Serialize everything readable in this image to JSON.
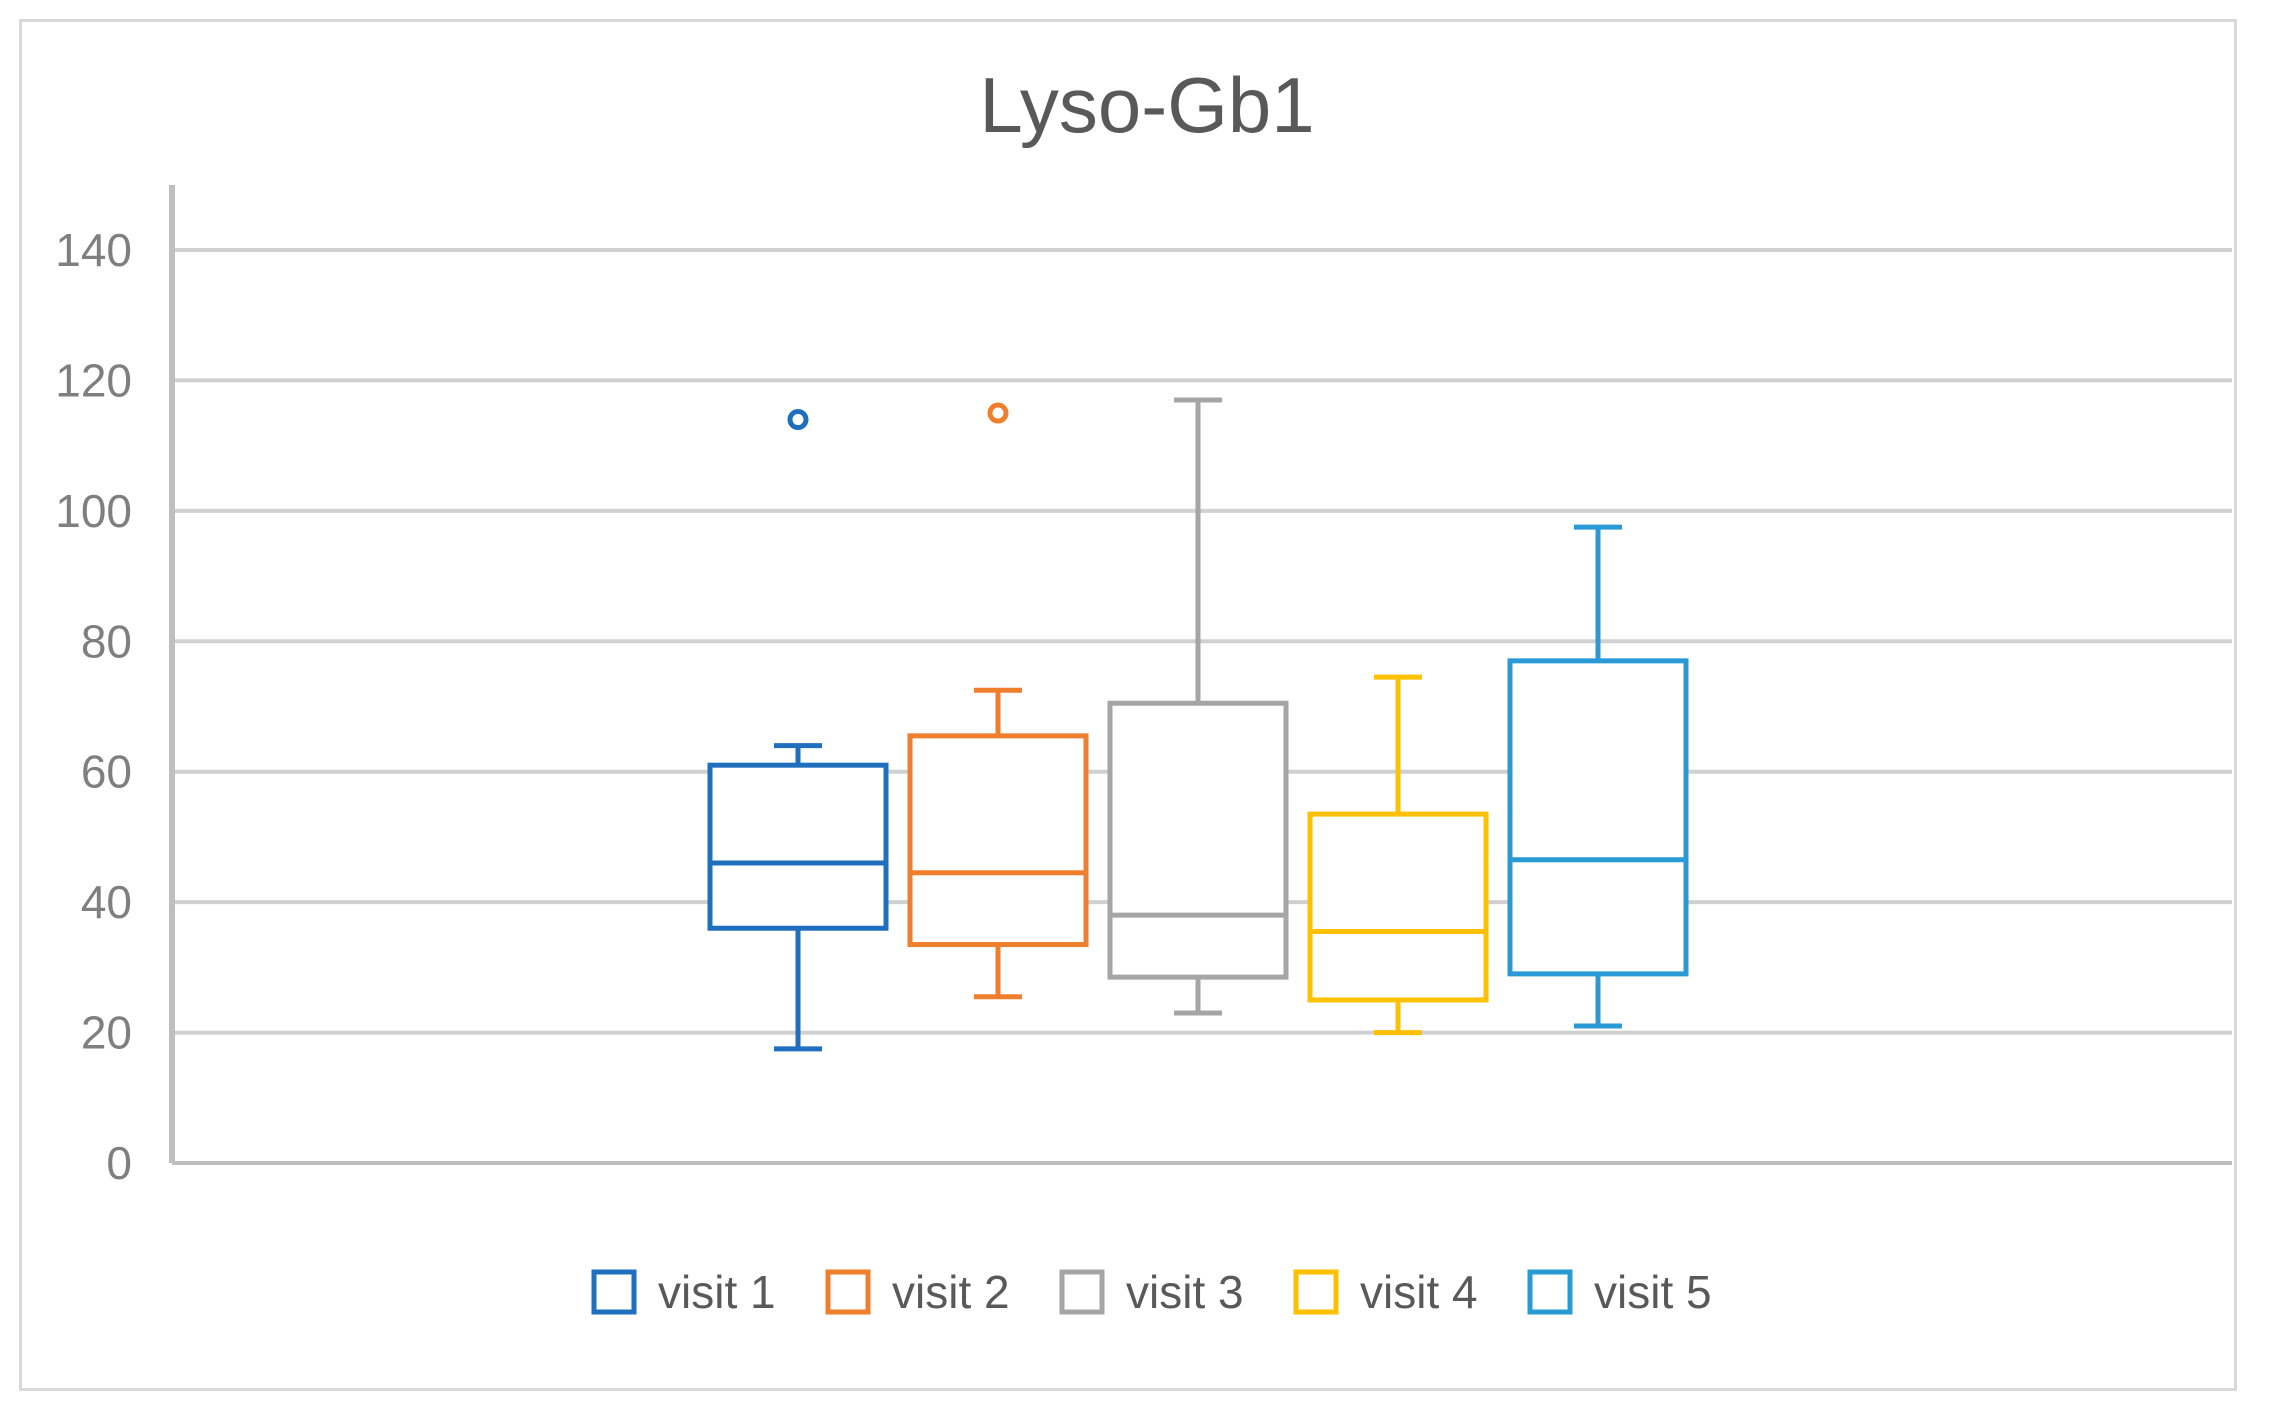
{
  "chart_data": {
    "type": "box",
    "title": "Lyso-Gb1",
    "xlabel": "",
    "ylabel": "",
    "ylim": [
      0,
      150
    ],
    "yticks": [
      0,
      20,
      40,
      60,
      80,
      100,
      120,
      140
    ],
    "grid": true,
    "legend_position": "bottom",
    "series": [
      {
        "name": "visit 1",
        "color": "#1f6fbf",
        "min": 17.5,
        "q1": 36,
        "median": 46,
        "q3": 61,
        "max": 64,
        "outliers": [
          114
        ]
      },
      {
        "name": "visit 2",
        "color": "#f07f2d",
        "min": 25.5,
        "q1": 33.5,
        "median": 44.5,
        "q3": 65.5,
        "max": 72.5,
        "outliers": [
          115
        ]
      },
      {
        "name": "visit 3",
        "color": "#a5a5a5",
        "min": 23,
        "q1": 28.5,
        "median": 38,
        "q3": 70.5,
        "max": 117,
        "outliers": []
      },
      {
        "name": "visit 4",
        "color": "#ffc000",
        "min": 20,
        "q1": 25,
        "median": 35.5,
        "q3": 53.5,
        "max": 74.5,
        "outliers": []
      },
      {
        "name": "visit 5",
        "color": "#2a9ad6",
        "min": 21,
        "q1": 29,
        "median": 46.5,
        "q3": 77,
        "max": 97.5,
        "outliers": []
      }
    ]
  }
}
